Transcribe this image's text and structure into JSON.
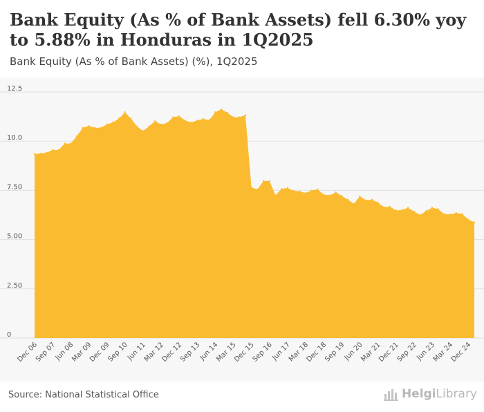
{
  "title": "Bank Equity (As % of Bank Assets) fell 6.30% yoy to 5.88% in Honduras in 1Q2025",
  "subtitle": "Bank Equity (As % of Bank Assets) (%), 1Q2025",
  "source": "Source: National Statistical Office",
  "logo": {
    "text_a": "Helgi",
    "text_b": "Library",
    "icon": "bar-chart-icon"
  },
  "colors": {
    "area_fill": "#fbbb31",
    "grid": "#e2e2e2",
    "plot_background": "#f7f7f7"
  },
  "chart_data": {
    "type": "area",
    "title": "",
    "xlabel": "",
    "ylabel": "",
    "ylim": [
      0,
      12.5
    ],
    "yticks": [
      "0",
      "2.50",
      "5.00",
      "7.50",
      "10.0",
      "12.5"
    ],
    "grid": true,
    "xtick_labels": [
      "Dec 06",
      "Sep 07",
      "Jun 08",
      "Mar 09",
      "Dec 09",
      "Sep 10",
      "Jun 11",
      "Mar 12",
      "Dec 12",
      "Sep 13",
      "Jun 14",
      "Mar 15",
      "Dec 15",
      "Sep 16",
      "Jun 17",
      "Mar 18",
      "Dec 18",
      "Sep 19",
      "Jun 20",
      "Mar 21",
      "Dec 21",
      "Sep 22",
      "Jun 23",
      "Mar 24",
      "Dec 24"
    ],
    "series": [
      {
        "values": [
          9.35,
          9.37,
          9.42,
          9.55,
          9.55,
          9.88,
          9.88,
          10.25,
          10.68,
          10.77,
          10.68,
          10.68,
          10.85,
          10.95,
          11.15,
          11.47,
          11.15,
          10.75,
          10.52,
          10.75,
          11.02,
          10.85,
          10.92,
          11.22,
          11.27,
          11.05,
          10.95,
          11.05,
          11.13,
          11.07,
          11.47,
          11.62,
          11.45,
          11.22,
          11.22,
          11.32,
          7.65,
          7.55,
          7.98,
          7.97,
          7.25,
          7.58,
          7.62,
          7.48,
          7.45,
          7.37,
          7.5,
          7.55,
          7.28,
          7.25,
          7.4,
          7.22,
          7.03,
          6.82,
          7.2,
          7.0,
          7.03,
          6.88,
          6.65,
          6.67,
          6.48,
          6.5,
          6.62,
          6.42,
          6.25,
          6.45,
          6.62,
          6.55,
          6.3,
          6.28,
          6.35,
          6.3,
          6.02,
          5.88
        ]
      }
    ]
  }
}
